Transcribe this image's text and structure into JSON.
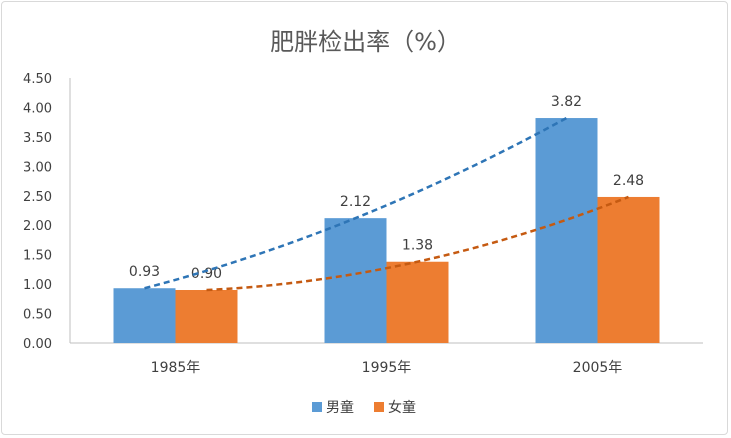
{
  "chart_data": {
    "type": "bar",
    "title": "肥胖检出率（%）",
    "categories": [
      "1985年",
      "1995年",
      "2005年"
    ],
    "series": [
      {
        "name": "男童",
        "values": [
          0.93,
          2.12,
          3.82
        ],
        "color": "#5B9BD5",
        "trendline_color": "#2E75B6"
      },
      {
        "name": "女童",
        "values": [
          0.9,
          1.38,
          2.48
        ],
        "color": "#ED7D31",
        "trendline_color": "#C55A11"
      }
    ],
    "ylim": [
      0,
      4.5
    ],
    "yticks": [
      "0.00",
      "0.50",
      "1.00",
      "1.50",
      "2.00",
      "2.50",
      "3.00",
      "3.50",
      "4.00",
      "4.50"
    ],
    "trendlines": "dashed, per series",
    "grid": false,
    "legend": "bottom",
    "data_labels": [
      "0.93",
      "2.12",
      "3.82",
      "0.90",
      "1.38",
      "2.48"
    ]
  }
}
